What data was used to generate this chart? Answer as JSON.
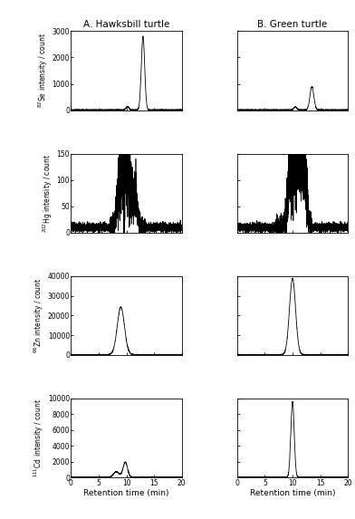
{
  "title_left": "A. Hawksbill turtle",
  "title_right": "B. Green turtle",
  "xlabel": "Retention time (min)",
  "x_min": 0,
  "x_max": 20,
  "x_ticks": [
    0,
    5,
    10,
    15,
    20
  ],
  "rows": [
    {
      "ylabel": "$^{82}$Se intensity / count",
      "ylim": [
        0,
        3000
      ],
      "yticks": [
        0,
        1000,
        2000,
        3000
      ]
    },
    {
      "ylabel": "$^{202}$Hg intensity / count",
      "ylim": [
        0,
        150
      ],
      "yticks": [
        0,
        50,
        100,
        150
      ]
    },
    {
      "ylabel": "$^{66}$Zn intensity / count",
      "ylim": [
        0,
        40000
      ],
      "yticks": [
        0,
        10000,
        20000,
        30000,
        40000
      ]
    },
    {
      "ylabel": "$^{111}$Cd intensity / count",
      "ylim": [
        0,
        10000
      ],
      "yticks": [
        0,
        2000,
        4000,
        6000,
        8000,
        10000
      ]
    }
  ],
  "line_color": "#000000",
  "bg_color": "#ffffff"
}
